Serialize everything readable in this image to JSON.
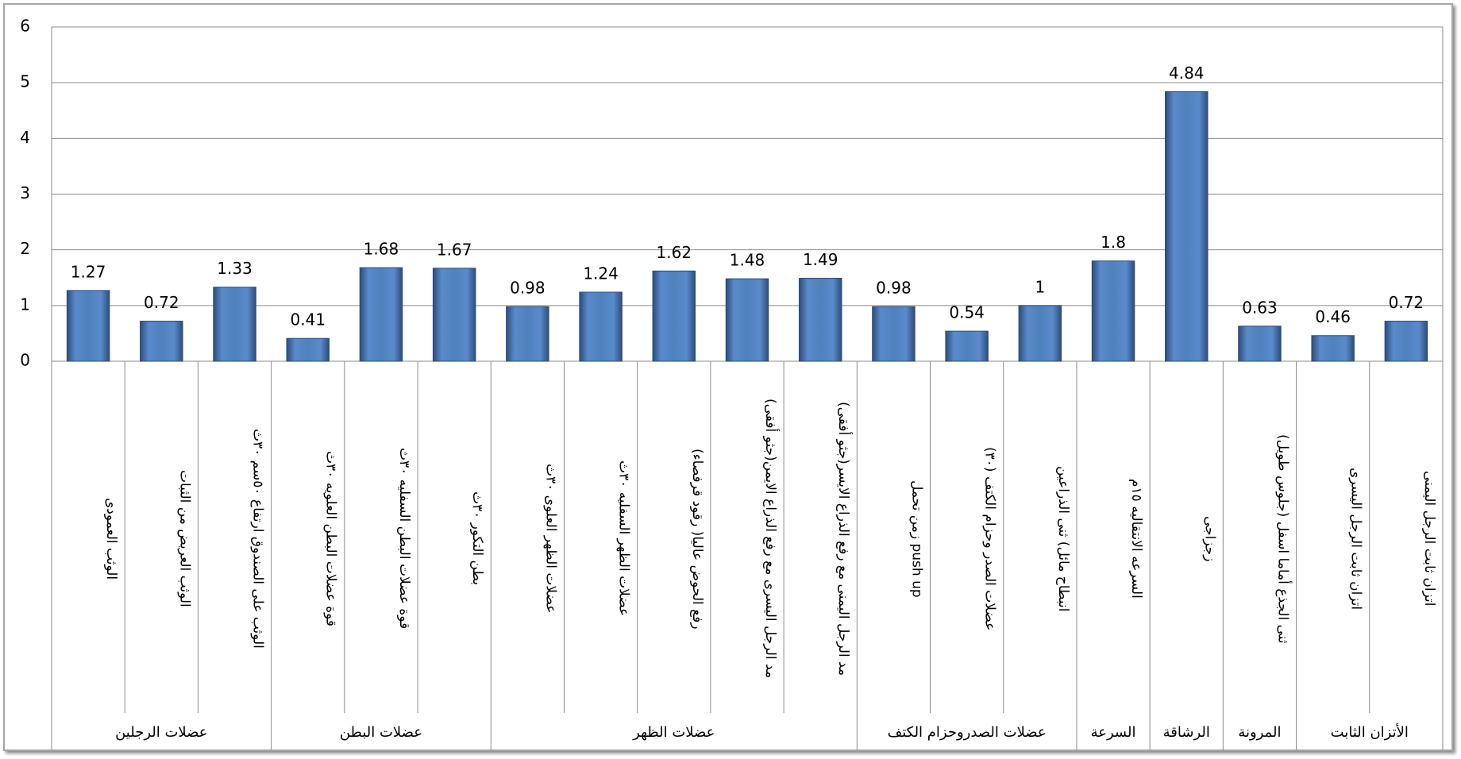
{
  "chart_data": {
    "type": "bar",
    "categories": [
      "الوثب العمودى",
      "الوثب العريض من الثبات",
      "الوثب على الصندوق ارتفاع ٥٠سم ٣٠ث",
      "قوة عضلات البطن العلويه ٣٠ث",
      "قوة عضلات البطن السفليه ٣٠ث",
      "بطن التكور ٣٠ث",
      "عضلات الظهر العلوى ٣٠ث",
      "عضلات الظهر السفليه ٣٠ث",
      "(رقود قرفصاء )رفع الحوض عاليا",
      "(جثو أفقى)مد الرجل اليسرى مع رفع الذراع الايمن",
      "(جثو أفقى)مد الرجل اليمنى مع رفع الذراع الايسر",
      "زمن تحمل push up",
      "عضلات الصدر وحزام الكتف (٣٠)",
      "انبطاح مائل) ثنى الذراعين",
      "السرعه الانتقاليه ١٥م",
      "زجزاجى",
      "(جلوس طويل) ثنى الجذع أماما اسفل",
      "اتزان ثابت الرجل اليسرى",
      "اتزان ثابت الرجل اليمنى"
    ],
    "values": [
      1.27,
      0.72,
      1.33,
      0.41,
      1.68,
      1.67,
      0.98,
      1.24,
      1.62,
      1.48,
      1.49,
      0.98,
      0.54,
      1,
      1.8,
      4.84,
      0.63,
      0.46,
      0.72
    ],
    "groups": [
      {
        "label": "عضلات الرجلين",
        "count": 3
      },
      {
        "label": "عضلات البطن",
        "count": 3
      },
      {
        "label": "عضلات الظهر",
        "count": 5
      },
      {
        "label": "عضلات الصدروحزام الكتف",
        "count": 3
      },
      {
        "label": "السرعة",
        "count": 1
      },
      {
        "label": "الرشاقة",
        "count": 1
      },
      {
        "label": "المرونة",
        "count": 1
      },
      {
        "label": "الأتزان الثابت",
        "count": 2
      }
    ],
    "color": "#4f81bd",
    "ylim": [
      0,
      6
    ],
    "yticks": [
      0,
      1,
      2,
      3,
      4,
      5,
      6
    ],
    "grid": true
  }
}
